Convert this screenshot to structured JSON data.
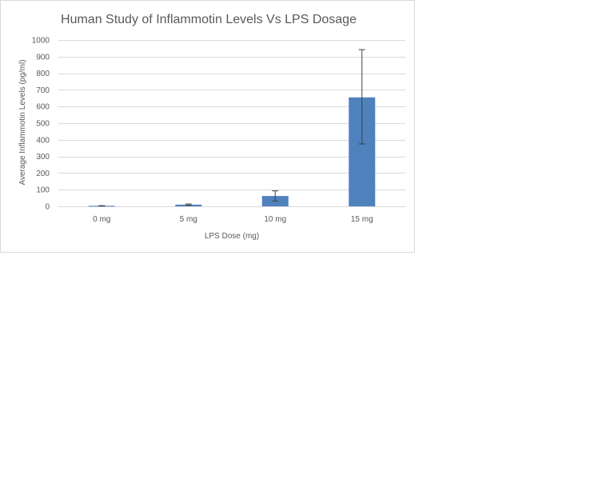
{
  "chart_data": {
    "type": "bar",
    "title": "Human Study of Inflammotin Levels Vs  LPS Dosage",
    "xlabel": "LPS Dose (mg)",
    "ylabel": "Average Inflammotin Levels (pg/ml)",
    "categories": [
      "0 mg",
      "5 mg",
      "10 mg",
      "15 mg"
    ],
    "values": [
      3,
      10,
      62,
      655
    ],
    "error_bars": [
      {
        "low": 2,
        "high": 4
      },
      {
        "low": 6,
        "high": 14
      },
      {
        "low": 32,
        "high": 93
      },
      {
        "low": 375,
        "high": 942
      }
    ],
    "ylim": [
      0,
      1000
    ],
    "yticks": [
      0,
      100,
      200,
      300,
      400,
      500,
      600,
      700,
      800,
      900,
      1000
    ],
    "grid": true,
    "legend": "none",
    "colors": {
      "bar": "#4f81bd",
      "grid": "#d9d9d9",
      "error_bar": "#404040",
      "text": "#595959"
    }
  }
}
